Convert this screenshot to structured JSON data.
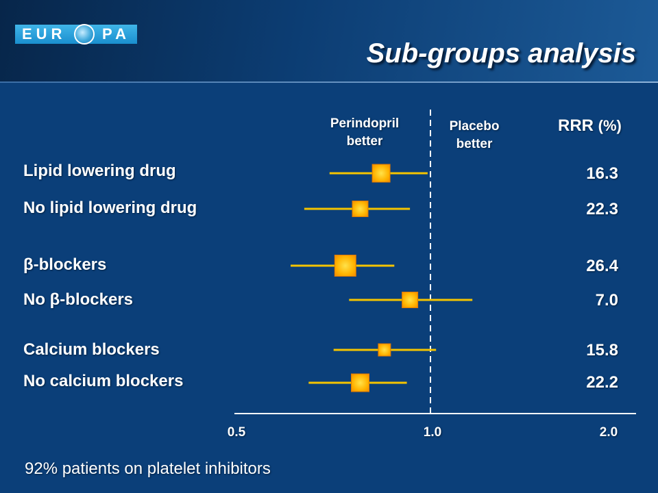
{
  "header": {
    "logo_left": "EUR",
    "logo_right": "PA",
    "title": "Sub-groups analysis"
  },
  "column_headers": {
    "left_line1": "Perindopril",
    "left_line2": "better",
    "right_line1": "Placebo",
    "right_line2": "better",
    "rrr": "RRR",
    "rrr_unit": "(%)"
  },
  "footnote": "92% patients on platelet inhibitors",
  "chart_data": {
    "type": "scatter",
    "subtype": "forest_plot",
    "title": "Sub-groups analysis",
    "xscale": "log",
    "xlim": [
      0.5,
      2.0
    ],
    "xticks": [
      "0.5",
      "1.0",
      "2.0"
    ],
    "reference_line": 1.0,
    "marker_color": "#ffb000",
    "ci_color": "#f5c400",
    "rows": [
      {
        "label": "Lipid lowering drug",
        "estimate": 0.84,
        "ci_low": 0.7,
        "ci_high": 0.99,
        "rrr": "16.3",
        "marker": "large"
      },
      {
        "label": "No lipid lowering drug",
        "estimate": 0.78,
        "ci_low": 0.64,
        "ci_high": 0.93,
        "rrr": "22.3",
        "marker": "medium"
      },
      {
        "label": "β-blockers",
        "estimate": 0.74,
        "ci_low": 0.61,
        "ci_high": 0.88,
        "rrr": "26.4",
        "marker": "xlarge"
      },
      {
        "label": "No β-blockers",
        "estimate": 0.93,
        "ci_low": 0.75,
        "ci_high": 1.16,
        "rrr": "7.0",
        "marker": "medium"
      },
      {
        "label": "Calcium blockers",
        "estimate": 0.85,
        "ci_low": 0.71,
        "ci_high": 1.02,
        "rrr": "15.8",
        "marker": "small"
      },
      {
        "label": "No calcium blockers",
        "estimate": 0.78,
        "ci_low": 0.65,
        "ci_high": 0.92,
        "rrr": "22.2",
        "marker": "large"
      }
    ]
  }
}
